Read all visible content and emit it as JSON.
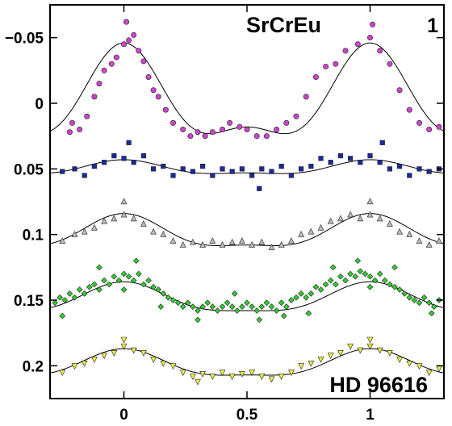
{
  "chart_data": {
    "type": "scatter",
    "title": "SrCrEu",
    "panel_label": "1",
    "star_label": "HD 96616",
    "xlim": [
      -0.3,
      1.3
    ],
    "ylim": [
      0.225,
      -0.075
    ],
    "y_inverted": true,
    "grid": false,
    "x_ticks": [
      {
        "value": 0,
        "label": "0"
      },
      {
        "value": 0.5,
        "label": "0.5"
      },
      {
        "value": 1,
        "label": "1"
      }
    ],
    "y_ticks": [
      {
        "value": -0.05,
        "label": "−0.05"
      },
      {
        "value": 0,
        "label": "0"
      },
      {
        "value": 0.05,
        "label": "0.05"
      },
      {
        "value": 0.1,
        "label": "0.1"
      },
      {
        "value": 0.15,
        "label": "0.15"
      },
      {
        "value": 0.2,
        "label": "0.2"
      }
    ],
    "series": [
      {
        "marker": "circle",
        "color": "#cc44cc",
        "fit": {
          "offset": 0.0,
          "a1": -0.032,
          "p1": 0.0,
          "a2": -0.014,
          "p2": 0.0
        },
        "points": [
          [
            -0.21,
            0.015
          ],
          [
            -0.18,
            0.02
          ],
          [
            -0.15,
            0.01
          ],
          [
            -0.12,
            -0.005
          ],
          [
            -0.1,
            -0.015
          ],
          [
            -0.08,
            -0.025
          ],
          [
            -0.05,
            -0.03
          ],
          [
            -0.03,
            -0.035
          ],
          [
            0.0,
            -0.045
          ],
          [
            0.02,
            -0.048
          ],
          [
            0.04,
            -0.052
          ],
          [
            0.06,
            -0.04
          ],
          [
            0.08,
            -0.032
          ],
          [
            0.1,
            -0.02
          ],
          [
            0.12,
            -0.01
          ],
          [
            0.14,
            -0.005
          ],
          [
            0.17,
            0.005
          ],
          [
            0.2,
            0.015
          ],
          [
            0.24,
            0.02
          ],
          [
            0.27,
            0.025
          ],
          [
            0.3,
            0.022
          ],
          [
            0.33,
            0.025
          ],
          [
            0.36,
            0.022
          ],
          [
            0.4,
            0.02
          ],
          [
            0.43,
            0.015
          ],
          [
            0.47,
            0.018
          ],
          [
            0.5,
            0.02
          ],
          [
            0.54,
            0.025
          ],
          [
            0.58,
            0.025
          ],
          [
            0.62,
            0.02
          ],
          [
            0.66,
            0.015
          ],
          [
            0.7,
            0.01
          ],
          [
            0.74,
            -0.005
          ],
          [
            0.78,
            -0.02
          ],
          [
            0.82,
            -0.028
          ],
          [
            0.86,
            -0.03
          ],
          [
            0.9,
            -0.04
          ],
          [
            0.95,
            -0.045
          ],
          [
            1.0,
            -0.05
          ],
          [
            1.04,
            -0.04
          ],
          [
            1.08,
            -0.03
          ],
          [
            1.12,
            -0.01
          ],
          [
            1.16,
            0.005
          ],
          [
            1.2,
            0.015
          ],
          [
            1.24,
            0.02
          ],
          [
            1.28,
            0.018
          ],
          [
            -0.22,
            0.022
          ],
          [
            0.01,
            -0.062
          ],
          [
            1.01,
            -0.06
          ]
        ]
      },
      {
        "marker": "square",
        "color": "#1a2a9a",
        "fit": {
          "offset": 0.05,
          "a1": -0.005,
          "p1": 0.0,
          "a2": -0.002,
          "p2": 0.0
        },
        "points": [
          [
            -0.25,
            0.052
          ],
          [
            -0.2,
            0.05
          ],
          [
            -0.16,
            0.055
          ],
          [
            -0.12,
            0.048
          ],
          [
            -0.08,
            0.045
          ],
          [
            -0.04,
            0.04
          ],
          [
            0.0,
            0.042
          ],
          [
            0.04,
            0.045
          ],
          [
            0.08,
            0.04
          ],
          [
            0.12,
            0.05
          ],
          [
            0.16,
            0.048
          ],
          [
            0.2,
            0.055
          ],
          [
            0.24,
            0.05
          ],
          [
            0.28,
            0.052
          ],
          [
            0.32,
            0.048
          ],
          [
            0.36,
            0.055
          ],
          [
            0.4,
            0.05
          ],
          [
            0.44,
            0.052
          ],
          [
            0.48,
            0.05
          ],
          [
            0.52,
            0.055
          ],
          [
            0.56,
            0.05
          ],
          [
            0.6,
            0.052
          ],
          [
            0.64,
            0.048
          ],
          [
            0.68,
            0.055
          ],
          [
            0.72,
            0.05
          ],
          [
            0.76,
            0.048
          ],
          [
            0.8,
            0.042
          ],
          [
            0.84,
            0.045
          ],
          [
            0.88,
            0.04
          ],
          [
            0.92,
            0.042
          ],
          [
            0.96,
            0.045
          ],
          [
            1.0,
            0.04
          ],
          [
            1.04,
            0.045
          ],
          [
            1.08,
            0.05
          ],
          [
            1.12,
            0.048
          ],
          [
            1.16,
            0.055
          ],
          [
            1.2,
            0.05
          ],
          [
            1.24,
            0.052
          ],
          [
            1.28,
            0.05
          ],
          [
            0.02,
            0.03
          ],
          [
            0.55,
            0.065
          ],
          [
            1.05,
            0.03
          ]
        ]
      },
      {
        "marker": "triangle-up",
        "color": "#bbbbbb",
        "fit": {
          "offset": 0.1,
          "a1": -0.012,
          "p1": 0.0,
          "a2": -0.004,
          "p2": 0.0
        },
        "points": [
          [
            -0.25,
            0.105
          ],
          [
            -0.2,
            0.1
          ],
          [
            -0.16,
            0.098
          ],
          [
            -0.12,
            0.095
          ],
          [
            -0.08,
            0.09
          ],
          [
            -0.04,
            0.088
          ],
          [
            0.0,
            0.085
          ],
          [
            0.04,
            0.088
          ],
          [
            0.08,
            0.092
          ],
          [
            0.12,
            0.098
          ],
          [
            0.16,
            0.1
          ],
          [
            0.2,
            0.105
          ],
          [
            0.24,
            0.108
          ],
          [
            0.28,
            0.106
          ],
          [
            0.32,
            0.108
          ],
          [
            0.36,
            0.105
          ],
          [
            0.4,
            0.108
          ],
          [
            0.44,
            0.106
          ],
          [
            0.48,
            0.105
          ],
          [
            0.52,
            0.108
          ],
          [
            0.56,
            0.106
          ],
          [
            0.6,
            0.11
          ],
          [
            0.64,
            0.108
          ],
          [
            0.68,
            0.105
          ],
          [
            0.72,
            0.1
          ],
          [
            0.76,
            0.098
          ],
          [
            0.8,
            0.095
          ],
          [
            0.84,
            0.09
          ],
          [
            0.88,
            0.088
          ],
          [
            0.92,
            0.085
          ],
          [
            0.96,
            0.088
          ],
          [
            1.0,
            0.085
          ],
          [
            1.04,
            0.088
          ],
          [
            1.08,
            0.092
          ],
          [
            1.12,
            0.098
          ],
          [
            1.16,
            0.1
          ],
          [
            1.2,
            0.105
          ],
          [
            1.24,
            0.108
          ],
          [
            1.28,
            0.105
          ],
          [
            0.0,
            0.075
          ],
          [
            1.0,
            0.075
          ]
        ]
      },
      {
        "marker": "diamond",
        "color": "#33cc33",
        "fit": {
          "offset": 0.15,
          "a1": -0.011,
          "p1": 0.0,
          "a2": -0.003,
          "p2": 0.0
        },
        "points": [
          [
            -0.28,
            0.152
          ],
          [
            -0.26,
            0.148
          ],
          [
            -0.24,
            0.15
          ],
          [
            -0.22,
            0.145
          ],
          [
            -0.2,
            0.148
          ],
          [
            -0.18,
            0.142
          ],
          [
            -0.16,
            0.145
          ],
          [
            -0.14,
            0.14
          ],
          [
            -0.12,
            0.138
          ],
          [
            -0.1,
            0.142
          ],
          [
            -0.08,
            0.135
          ],
          [
            -0.06,
            0.138
          ],
          [
            -0.04,
            0.132
          ],
          [
            -0.02,
            0.135
          ],
          [
            0.0,
            0.13
          ],
          [
            0.02,
            0.132
          ],
          [
            0.04,
            0.135
          ],
          [
            0.06,
            0.13
          ],
          [
            0.08,
            0.138
          ],
          [
            0.1,
            0.135
          ],
          [
            0.12,
            0.14
          ],
          [
            0.14,
            0.142
          ],
          [
            0.16,
            0.145
          ],
          [
            0.18,
            0.148
          ],
          [
            0.2,
            0.15
          ],
          [
            0.22,
            0.152
          ],
          [
            0.24,
            0.155
          ],
          [
            0.26,
            0.152
          ],
          [
            0.28,
            0.155
          ],
          [
            0.3,
            0.158
          ],
          [
            0.32,
            0.155
          ],
          [
            0.34,
            0.152
          ],
          [
            0.36,
            0.155
          ],
          [
            0.38,
            0.158
          ],
          [
            0.4,
            0.155
          ],
          [
            0.42,
            0.152
          ],
          [
            0.44,
            0.155
          ],
          [
            0.46,
            0.158
          ],
          [
            0.48,
            0.155
          ],
          [
            0.5,
            0.152
          ],
          [
            0.52,
            0.155
          ],
          [
            0.54,
            0.158
          ],
          [
            0.56,
            0.155
          ],
          [
            0.58,
            0.152
          ],
          [
            0.6,
            0.155
          ],
          [
            0.62,
            0.158
          ],
          [
            0.64,
            0.152
          ],
          [
            0.66,
            0.155
          ],
          [
            0.68,
            0.15
          ],
          [
            0.7,
            0.148
          ],
          [
            0.72,
            0.145
          ],
          [
            0.74,
            0.148
          ],
          [
            0.76,
            0.145
          ],
          [
            0.78,
            0.14
          ],
          [
            0.8,
            0.142
          ],
          [
            0.82,
            0.138
          ],
          [
            0.84,
            0.135
          ],
          [
            0.86,
            0.138
          ],
          [
            0.88,
            0.132
          ],
          [
            0.9,
            0.135
          ],
          [
            0.92,
            0.13
          ],
          [
            0.94,
            0.132
          ],
          [
            0.96,
            0.128
          ],
          [
            0.98,
            0.13
          ],
          [
            1.0,
            0.132
          ],
          [
            1.02,
            0.135
          ],
          [
            1.04,
            0.13
          ],
          [
            1.06,
            0.135
          ],
          [
            1.08,
            0.138
          ],
          [
            1.1,
            0.14
          ],
          [
            1.12,
            0.142
          ],
          [
            1.14,
            0.145
          ],
          [
            1.16,
            0.148
          ],
          [
            1.18,
            0.15
          ],
          [
            1.2,
            0.152
          ],
          [
            1.22,
            0.148
          ],
          [
            1.24,
            0.152
          ],
          [
            1.26,
            0.155
          ],
          [
            1.28,
            0.15
          ],
          [
            -0.25,
            0.162
          ],
          [
            -0.1,
            0.125
          ],
          [
            0.05,
            0.12
          ],
          [
            0.3,
            0.165
          ],
          [
            0.55,
            0.165
          ],
          [
            0.75,
            0.16
          ],
          [
            0.95,
            0.12
          ],
          [
            1.1,
            0.125
          ],
          [
            1.25,
            0.16
          ],
          [
            0.45,
            0.145
          ],
          [
            0.65,
            0.162
          ],
          [
            0.15,
            0.155
          ],
          [
            0.85,
            0.125
          ],
          [
            0.0,
            0.142
          ],
          [
            1.0,
            0.14
          ]
        ]
      },
      {
        "marker": "triangle-down",
        "color": "#eeee44",
        "fit": {
          "offset": 0.2,
          "a1": -0.01,
          "p1": 0.0,
          "a2": -0.003,
          "p2": 0.0
        },
        "points": [
          [
            -0.25,
            0.205
          ],
          [
            -0.2,
            0.2
          ],
          [
            -0.16,
            0.198
          ],
          [
            -0.12,
            0.195
          ],
          [
            -0.08,
            0.192
          ],
          [
            -0.04,
            0.19
          ],
          [
            0.0,
            0.185
          ],
          [
            0.04,
            0.188
          ],
          [
            0.08,
            0.19
          ],
          [
            0.12,
            0.195
          ],
          [
            0.16,
            0.198
          ],
          [
            0.2,
            0.2
          ],
          [
            0.24,
            0.205
          ],
          [
            0.28,
            0.208
          ],
          [
            0.32,
            0.206
          ],
          [
            0.36,
            0.208
          ],
          [
            0.4,
            0.205
          ],
          [
            0.44,
            0.208
          ],
          [
            0.48,
            0.206
          ],
          [
            0.52,
            0.205
          ],
          [
            0.56,
            0.208
          ],
          [
            0.6,
            0.21
          ],
          [
            0.64,
            0.208
          ],
          [
            0.68,
            0.205
          ],
          [
            0.72,
            0.2
          ],
          [
            0.76,
            0.198
          ],
          [
            0.8,
            0.195
          ],
          [
            0.84,
            0.192
          ],
          [
            0.88,
            0.19
          ],
          [
            0.92,
            0.185
          ],
          [
            0.96,
            0.188
          ],
          [
            1.0,
            0.185
          ],
          [
            1.04,
            0.188
          ],
          [
            1.08,
            0.19
          ],
          [
            1.12,
            0.195
          ],
          [
            1.16,
            0.198
          ],
          [
            1.2,
            0.2
          ],
          [
            1.24,
            0.205
          ],
          [
            1.28,
            0.202
          ],
          [
            0.0,
            0.18
          ],
          [
            1.0,
            0.18
          ],
          [
            0.3,
            0.212
          ]
        ]
      }
    ]
  }
}
